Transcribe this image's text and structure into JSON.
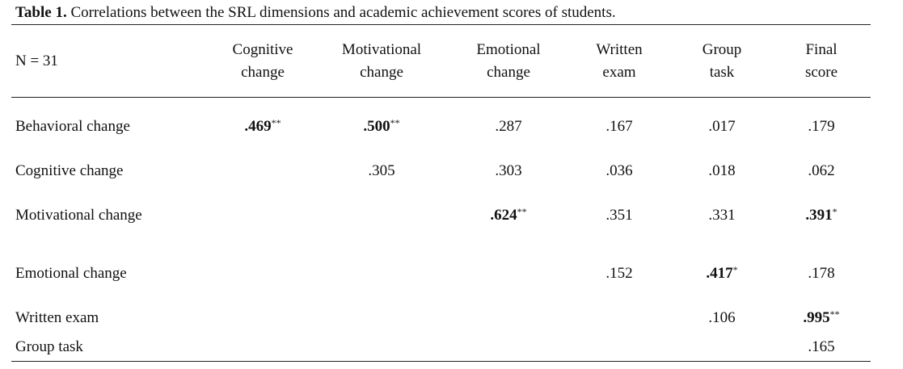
{
  "caption": {
    "label": "Table 1.",
    "text": " Correlations between the SRL dimensions and academic achievement scores of students."
  },
  "header": {
    "stub": "N = 31",
    "columns": [
      {
        "line1": "Cognitive",
        "line2": "change"
      },
      {
        "line1": "Motivational",
        "line2": "change"
      },
      {
        "line1": "Emotional",
        "line2": "change"
      },
      {
        "line1": "Written",
        "line2": "exam"
      },
      {
        "line1": "Group",
        "line2": "task"
      },
      {
        "line1": "Final",
        "line2": "score"
      }
    ]
  },
  "rows": [
    {
      "label": "Behavioral change",
      "cells": [
        {
          "v": ".469",
          "sig": "**",
          "bold": true
        },
        {
          "v": ".500",
          "sig": "**",
          "bold": true
        },
        {
          "v": ".287",
          "sig": "",
          "bold": false
        },
        {
          "v": ".167",
          "sig": "",
          "bold": false
        },
        {
          "v": ".017",
          "sig": "",
          "bold": false
        },
        {
          "v": ".179",
          "sig": "",
          "bold": false
        }
      ]
    },
    {
      "label": "Cognitive change",
      "cells": [
        null,
        {
          "v": ".305",
          "sig": "",
          "bold": false
        },
        {
          "v": ".303",
          "sig": "",
          "bold": false
        },
        {
          "v": ".036",
          "sig": "",
          "bold": false
        },
        {
          "v": ".018",
          "sig": "",
          "bold": false
        },
        {
          "v": ".062",
          "sig": "",
          "bold": false
        }
      ]
    },
    {
      "label": "Motivational change",
      "cells": [
        null,
        null,
        {
          "v": ".624",
          "sig": "**",
          "bold": true
        },
        {
          "v": ".351",
          "sig": "",
          "bold": false
        },
        {
          "v": ".331",
          "sig": "",
          "bold": false
        },
        {
          "v": ".391",
          "sig": "*",
          "bold": true
        }
      ]
    },
    {
      "label": "Emotional change",
      "cells": [
        null,
        null,
        null,
        {
          "v": ".152",
          "sig": "",
          "bold": false
        },
        {
          "v": ".417",
          "sig": "*",
          "bold": true
        },
        {
          "v": ".178",
          "sig": "",
          "bold": false
        }
      ]
    },
    {
      "label": "Written exam",
      "cells": [
        null,
        null,
        null,
        null,
        {
          "v": ".106",
          "sig": "",
          "bold": false
        },
        {
          "v": ".995",
          "sig": "**",
          "bold": true
        }
      ]
    },
    {
      "label": "Group task",
      "cells": [
        null,
        null,
        null,
        null,
        null,
        {
          "v": ".165",
          "sig": "",
          "bold": false
        }
      ]
    }
  ]
}
